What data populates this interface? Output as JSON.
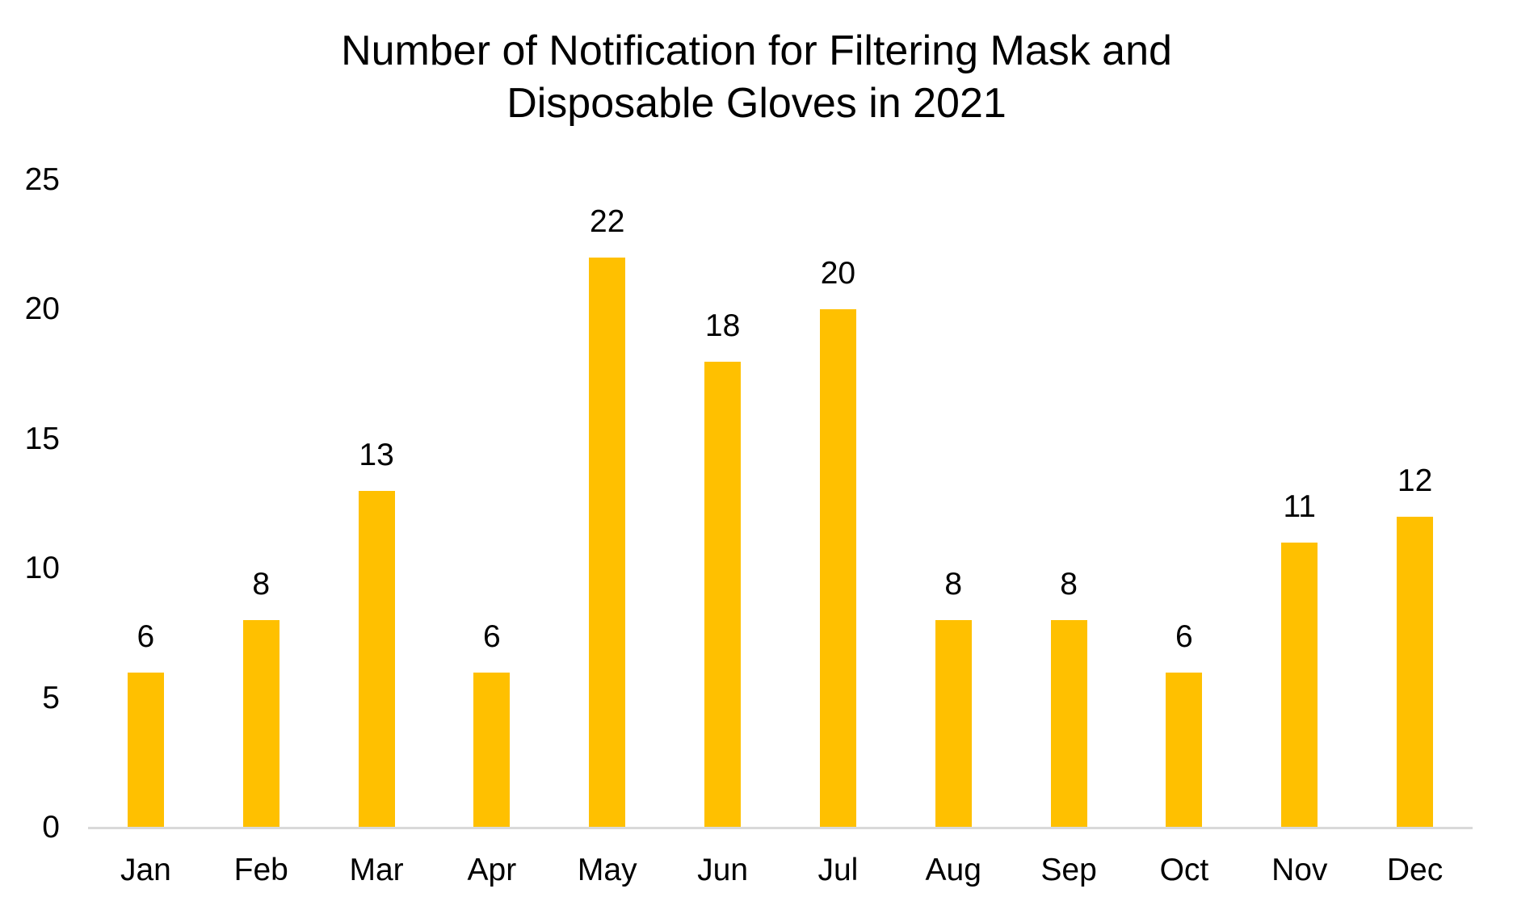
{
  "chart_data": {
    "type": "bar",
    "title": "Number of Notification for Filtering Mask and Disposable Gloves in 2021",
    "title_lines": [
      "Number of Notification for Filtering Mask and",
      "Disposable Gloves in 2021"
    ],
    "categories": [
      "Jan",
      "Feb",
      "Mar",
      "Apr",
      "May",
      "Jun",
      "Jul",
      "Aug",
      "Sep",
      "Oct",
      "Nov",
      "Dec"
    ],
    "values": [
      6,
      8,
      13,
      6,
      22,
      18,
      20,
      8,
      8,
      6,
      11,
      12
    ],
    "y_ticks": [
      0,
      5,
      10,
      15,
      20,
      25
    ],
    "ylim": [
      0,
      25
    ],
    "xlabel": "",
    "ylabel": "",
    "grid": false,
    "legend": false,
    "data_labels_shown": true,
    "colors": {
      "bar": "#FFC000",
      "axis_line": "#D9D9D9",
      "text": "#000000",
      "background": "#FFFFFF"
    }
  }
}
